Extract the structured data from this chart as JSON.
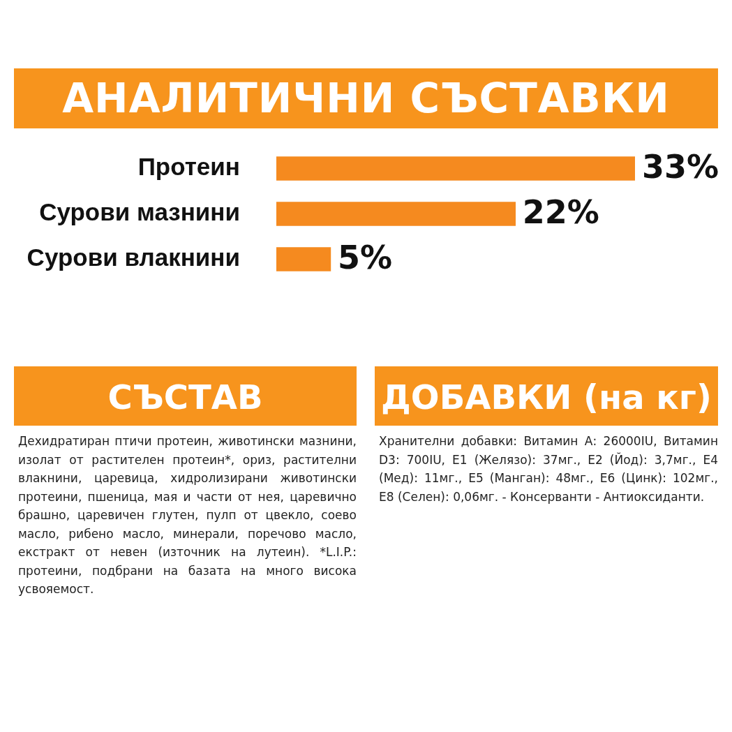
{
  "chart_data": {
    "type": "bar",
    "orientation": "horizontal",
    "title": "АНАЛИТИЧНИ СЪСТАВКИ",
    "categories": [
      "Протеин",
      "Сурови мазнини",
      "Сурови влакнини"
    ],
    "values": [
      33,
      22,
      5
    ],
    "value_labels": [
      "33%",
      "22%",
      "5%"
    ],
    "color": "#f58a1f",
    "tick_labels": "y",
    "annotations": [
      "СЪСТАВ",
      "Дехидратиран птичи протеин, животински мазнини, изолат от растителен протеин*, ориз, растителни влакнини, царевица, хидролизирани животински протеини, пшеница, мая и части от нея, царевично брашно, царевичен глутен, пулп от цвекло, соево масло, рибено масло, минерали, поречово масло, екстракт от невен (източник на лутеин). *L.I.P.: протеини, подбрани на базата на много висока усвояемост.",
      "ДОБАВКИ (на кг)",
      "Хранителни добавки: Витамин А: 26000IU, Витамин D3: 700IU, Е1 (Желязо): 37мг., Е2 (Йод): 3,7мг., Е4 (Мед): 11мг., Е5 (Манган): 48мг., Е6 (Цинк): 102мг., Е8 (Селен): 0,06мг. - Консерванти - Антиоксиданти."
    ]
  }
}
